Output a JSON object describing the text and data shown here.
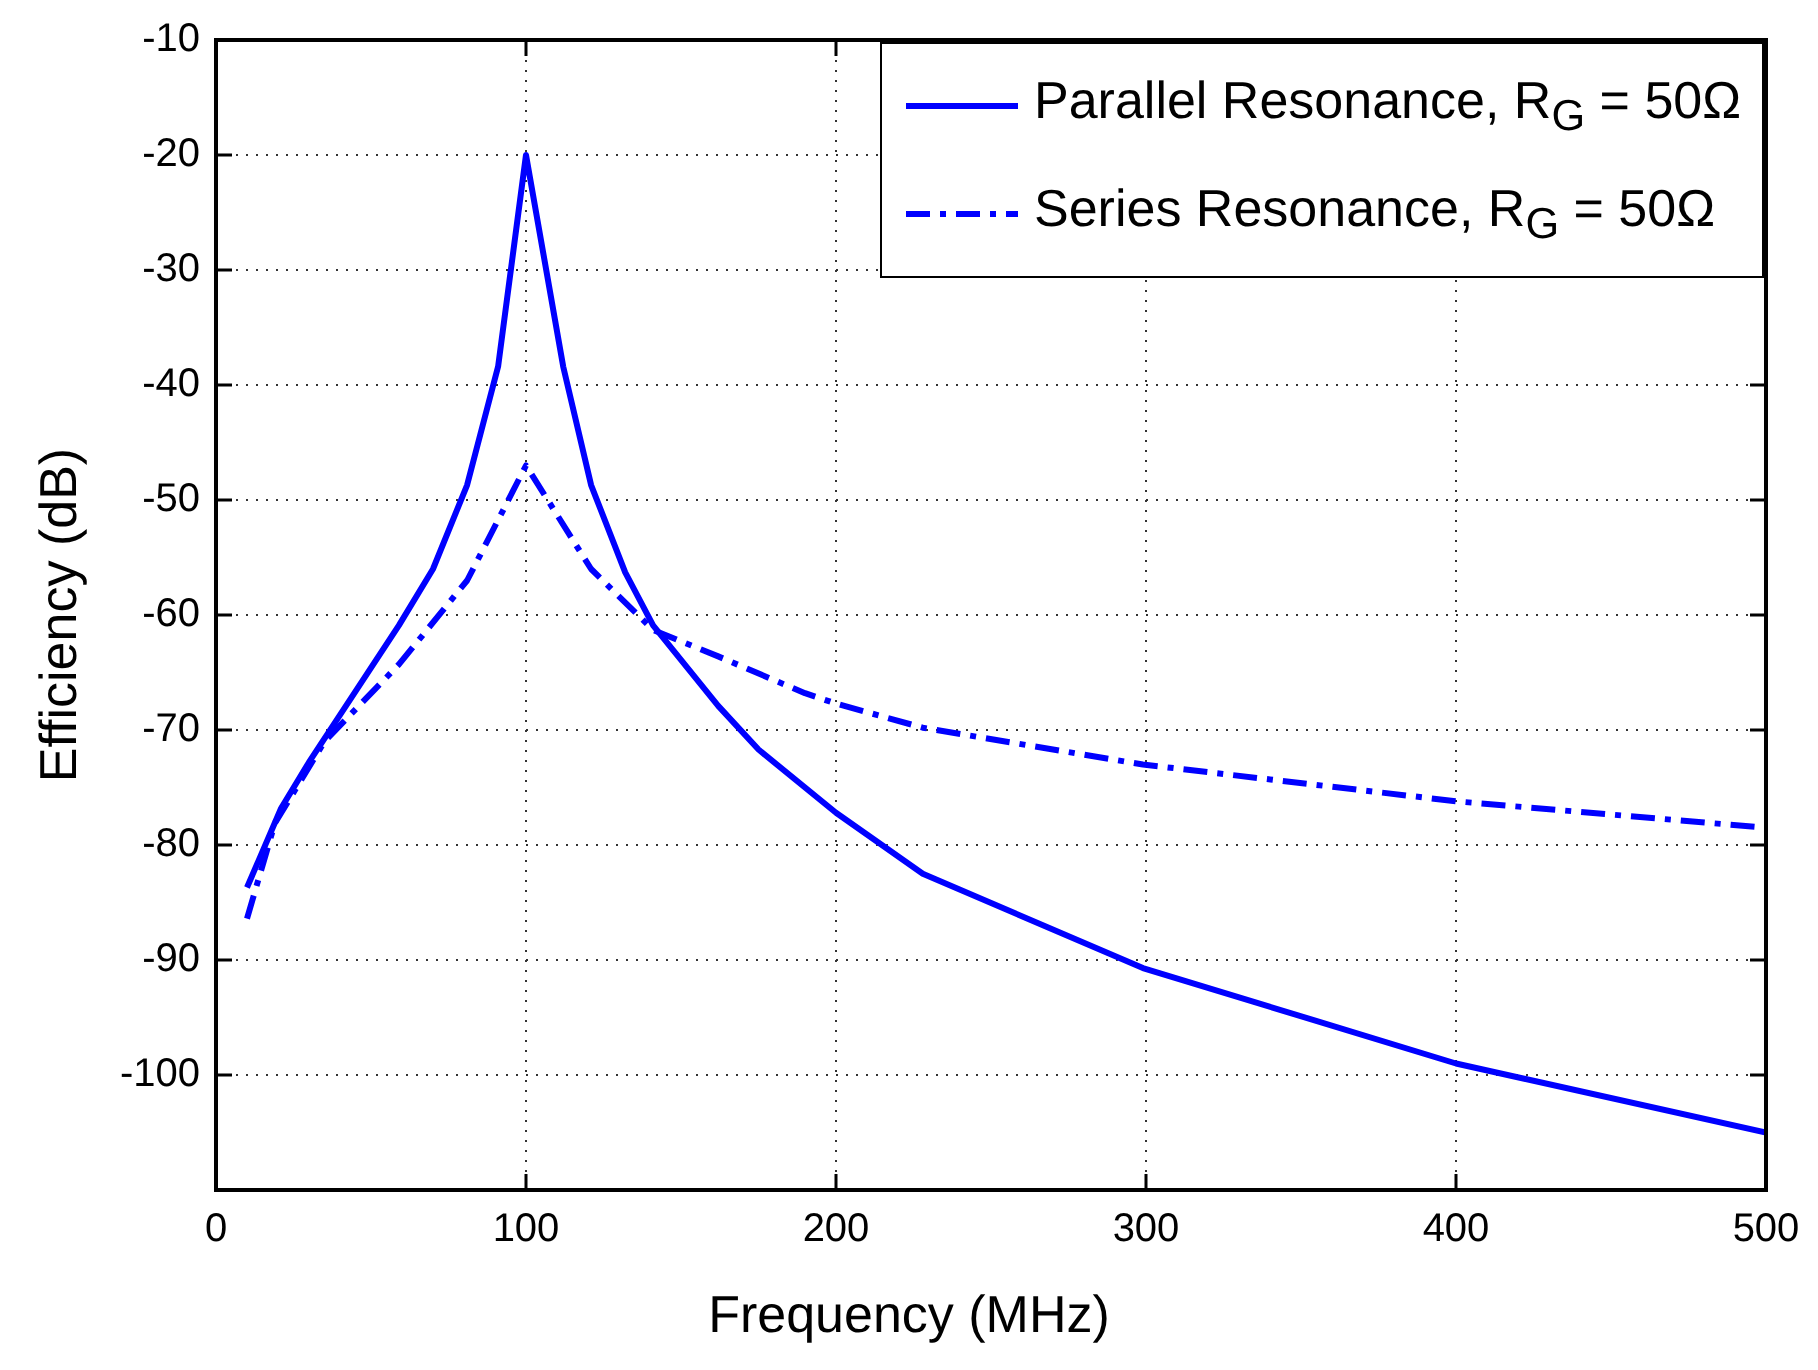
{
  "chart_data": {
    "type": "line",
    "xlabel": "Frequency (MHz)",
    "ylabel": "Efficiency (dB)",
    "xlim": [
      0,
      500
    ],
    "xticks": [
      0,
      100,
      200,
      300,
      400,
      500
    ],
    "ylim": [
      -110,
      -10
    ],
    "yticks": [
      -100,
      -90,
      -80,
      -70,
      -60,
      -50,
      -40,
      -30,
      -20,
      -10
    ],
    "grid": true,
    "legend": "top right",
    "marker": "none",
    "series": [
      {
        "name": "Parallel Resonance, R$_{G}$ = 50Ω",
        "color": "#0000ff",
        "line_style": "solid",
        "x": [
          10,
          21,
          30,
          59,
          70,
          81,
          91,
          100,
          112,
          121,
          132,
          141,
          162,
          175,
          200,
          228,
          299,
          400,
          500
        ],
        "values": [
          -83.7,
          -76.8,
          -72.8,
          -60.9,
          -56,
          -48.7,
          -38.4,
          -20,
          -38.4,
          -48.7,
          -56.3,
          -60.9,
          -67.9,
          -71.7,
          -77.2,
          -82.5,
          -90.7,
          -99,
          -105
        ]
      },
      {
        "name": "Series Resonance, R$_{G}$ = 50Ω",
        "color": "#0000ff",
        "line_style": "dashed",
        "x": [
          10,
          19,
          35,
          59,
          81,
          100,
          121,
          141,
          162,
          190,
          200,
          228,
          299,
          400,
          500
        ],
        "values": [
          -86.4,
          -78.1,
          -71,
          -64.3,
          -57,
          -47,
          -56,
          -61.3,
          -63.6,
          -66.8,
          -67.7,
          -69.8,
          -73,
          -76.2,
          -78.5
        ]
      }
    ]
  }
}
